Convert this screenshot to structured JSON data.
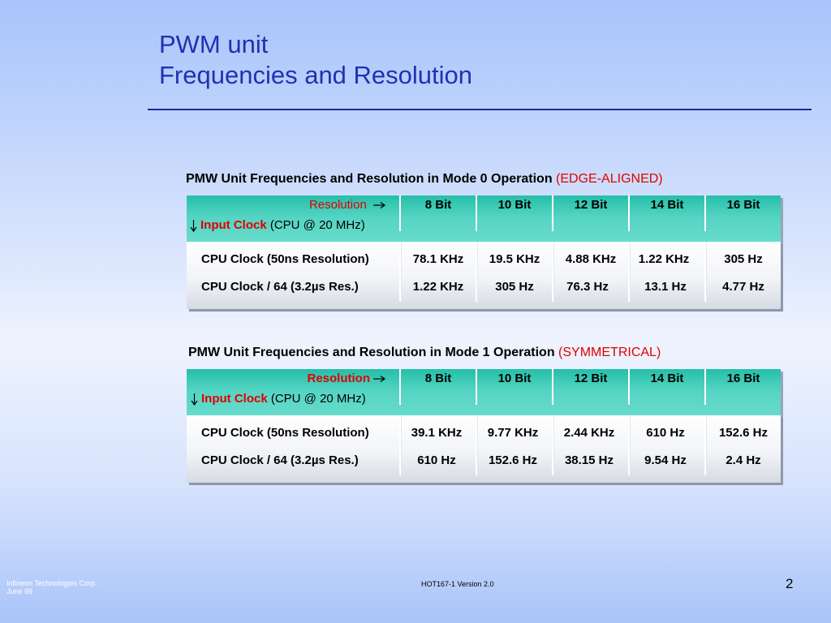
{
  "title": {
    "line1": "PWM unit",
    "line2": "Frequencies and Resolution"
  },
  "resolutions": [
    "8 Bit",
    "10 Bit",
    "12 Bit",
    "14 Bit",
    "16 Bit"
  ],
  "tables": [
    {
      "caption": "PMW Unit Frequencies and Resolution in Mode 0 Operation",
      "mode": "(EDGE-ALIGNED)",
      "header": {
        "resolution_label": "Resolution",
        "input_clock_label": "Input Clock",
        "input_clock_note": "(CPU @ 20 MHz)"
      },
      "rows": [
        {
          "label": "CPU Clock (50ns Resolution)",
          "values": [
            "78.1 KHz",
            "19.5 KHz",
            "4.88 KHz",
            "1.22 KHz",
            "305 Hz"
          ]
        },
        {
          "label": "CPU Clock / 64 (3.2µs Res.)",
          "values": [
            "1.22 KHz",
            "305 Hz",
            "76.3 Hz",
            "13.1 Hz",
            "4.77 Hz"
          ]
        }
      ]
    },
    {
      "caption": "PMW Unit Frequencies and Resolution in Mode 1 Operation",
      "mode": "(SYMMETRICAL)",
      "header": {
        "resolution_label": "Resolution",
        "input_clock_label": "Input Clock",
        "input_clock_note": "(CPU @ 20 MHz)"
      },
      "rows": [
        {
          "label": "CPU Clock (50ns Resolution)",
          "values": [
            "39.1 KHz",
            "9.77 KHz",
            "2.44 KHz",
            "610 Hz",
            "152.6 Hz"
          ]
        },
        {
          "label": "CPU Clock / 64 (3.2µs Res.)",
          "values": [
            "610 Hz",
            "152.6 Hz",
            "38.15 Hz",
            "9.54 Hz",
            "2.4 Hz"
          ]
        }
      ]
    }
  ],
  "footer": {
    "company": "Infineon Technologies Corp.",
    "date": "June 99",
    "center": "HOT167-1  Version 2.0",
    "page": "2"
  },
  "colors": {
    "title": "#1e32b4",
    "accent_red": "#e00000",
    "header_teal": "#56d4c3"
  },
  "icons": {
    "resolution_arrow": "arrow-right-icon",
    "clock_arrow": "arrow-down-icon"
  }
}
